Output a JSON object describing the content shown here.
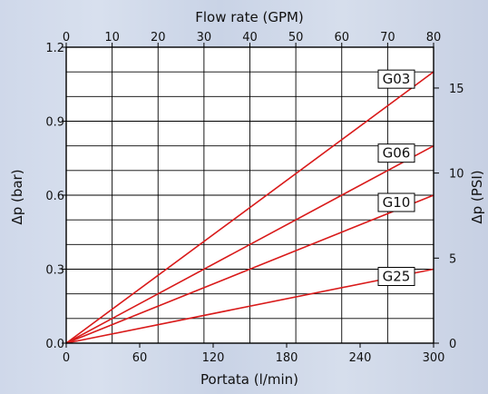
{
  "chart_data": {
    "type": "line",
    "top_axis": {
      "title": "Flow rate (GPM)",
      "ticks": [
        "0",
        "10",
        "20",
        "30",
        "40",
        "50",
        "60",
        "70",
        "80"
      ],
      "range": [
        0,
        80
      ]
    },
    "bottom_axis": {
      "title": "Portata (l/min)",
      "ticks": [
        "0",
        "60",
        "120",
        "180",
        "240",
        "300"
      ],
      "range": [
        0,
        300
      ]
    },
    "left_axis": {
      "title": "Δp (bar)",
      "ticks": [
        "0.0",
        "0.3",
        "0.6",
        "0.9",
        "1.2"
      ],
      "range": [
        0,
        1.2
      ]
    },
    "right_axis": {
      "title": "Δp (PSI)",
      "ticks": [
        "0",
        "5",
        "10",
        "15"
      ],
      "range": [
        0,
        17.4
      ]
    },
    "grid": true,
    "series": [
      {
        "name": "G03",
        "x": [
          0,
          300
        ],
        "y": [
          0,
          1.1
        ]
      },
      {
        "name": "G06",
        "x": [
          0,
          300
        ],
        "y": [
          0,
          0.8
        ]
      },
      {
        "name": "G10",
        "x": [
          0,
          300
        ],
        "y": [
          0,
          0.6
        ]
      },
      {
        "name": "G25",
        "x": [
          0,
          300
        ],
        "y": [
          0,
          0.3
        ]
      }
    ],
    "line_color": "#d91a1a"
  }
}
